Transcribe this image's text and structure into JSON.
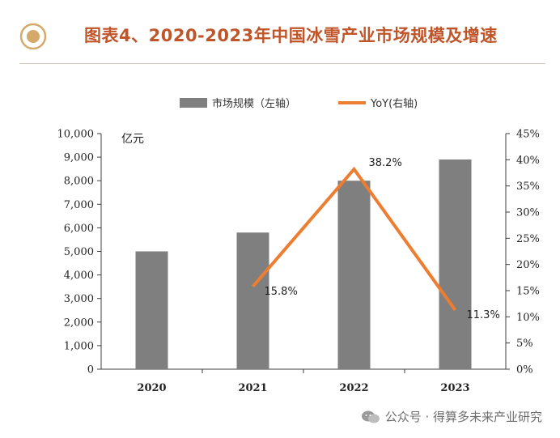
{
  "header": {
    "title": "图表4、2020-2023年中国冰雪产业市场规模及增速"
  },
  "watermark": {
    "text": "公众号 · 得算多未来产业研究",
    "icon": "wechat-icon"
  },
  "colors": {
    "title": "#c0552a",
    "bar": "#7f7f7f",
    "line": "#ed7d31",
    "axis": "#3f3f3f",
    "icon_ring": "#d4a96a"
  },
  "chart_data": {
    "type": "bar",
    "categories": [
      "2020",
      "2021",
      "2022",
      "2023"
    ],
    "series": [
      {
        "name": "市场规模（左轴）",
        "type": "bar",
        "axis": "left",
        "values": [
          5000,
          5800,
          8000,
          8900
        ]
      },
      {
        "name": "YoY(右轴)",
        "type": "line",
        "axis": "right",
        "values": [
          null,
          15.8,
          38.2,
          11.3
        ],
        "labels": [
          "",
          "15.8%",
          "38.2%",
          "11.3%"
        ]
      }
    ],
    "y_left": {
      "unit_label": "亿元",
      "range": [
        0,
        10000
      ],
      "ticks": [
        "0",
        "1,000",
        "2,000",
        "3,000",
        "4,000",
        "5,000",
        "6,000",
        "7,000",
        "8,000",
        "9,000",
        "10,000"
      ]
    },
    "y_right": {
      "range": [
        0,
        45
      ],
      "ticks": [
        "0%",
        "5%",
        "10%",
        "15%",
        "20%",
        "25%",
        "30%",
        "35%",
        "40%",
        "45%"
      ]
    },
    "legend_position": "top",
    "grid": false
  }
}
